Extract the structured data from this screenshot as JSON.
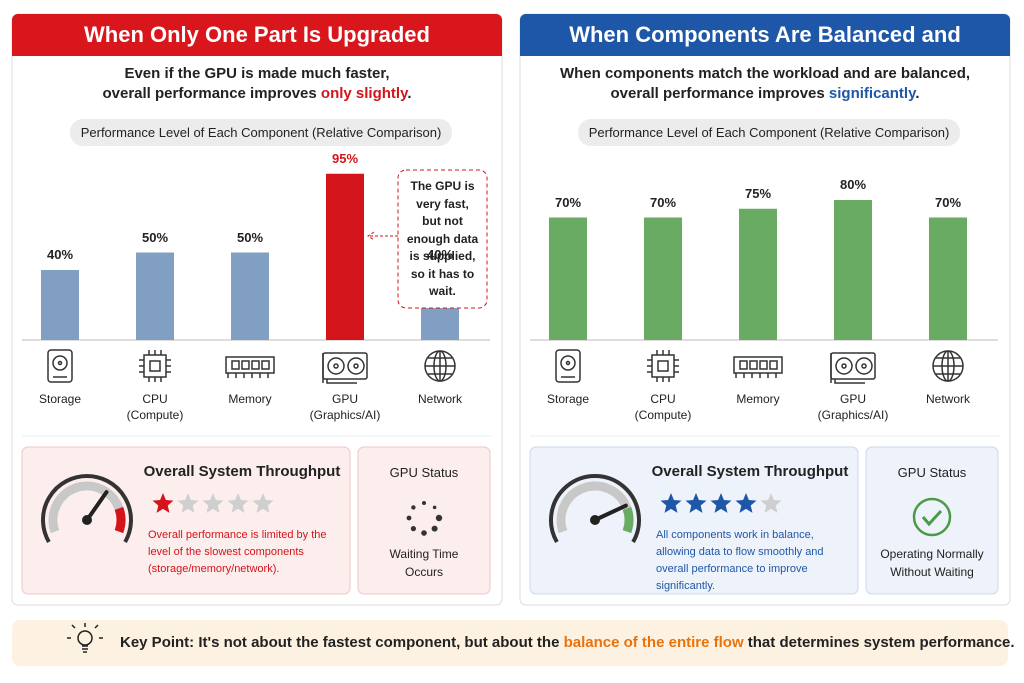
{
  "chart_data": [
    {
      "type": "bar",
      "title": "When Only One Part Is Upgraded",
      "subtitle": {
        "line1": "Even if the GPU is made much faster,",
        "line2": "overall performance improves ",
        "highlight": "only slightly",
        "end": "."
      },
      "chart_label": "Performance Level of Each Component (Relative Comparison)",
      "categories": [
        "Storage",
        "CPU\n(Compute)",
        "Memory",
        "GPU\n(Graphics/AI)",
        "Network"
      ],
      "values": [
        40,
        50,
        50,
        95,
        40
      ],
      "value_labels": [
        "40%",
        "50%",
        "50%",
        "95%",
        "40%"
      ],
      "colors": [
        "#819fc2",
        "#819fc2",
        "#819fc2",
        "#d3141a",
        "#819fc2"
      ],
      "value_label_colors": [
        "#222222",
        "#222222",
        "#222222",
        "#d3141a",
        "#222222"
      ],
      "header_color": "#d9161c",
      "accent_color": "#d3141a",
      "annotation": "The GPU is\nvery fast,\nbut not\nenough data\nis supplied,\nso it has to\nwait.",
      "summary": {
        "title": "Overall System Throughput",
        "rating": 1,
        "max_rating": 5,
        "text": "Overall performance is limited by the\nlevel of the slowest components\n(storage/memory/network)."
      },
      "status": {
        "title": "GPU Status",
        "text": "Waiting Time\nOccurs"
      }
    },
    {
      "type": "bar",
      "title": "When Components Are Balanced and Optimized",
      "subtitle": {
        "line1": "When components match the workload and are balanced,",
        "line2": "overall performance improves ",
        "highlight": "significantly",
        "end": "."
      },
      "chart_label": "Performance Level of Each Component (Relative Comparison)",
      "categories": [
        "Storage",
        "CPU\n(Compute)",
        "Memory",
        "GPU\n(Graphics/AI)",
        "Network"
      ],
      "values": [
        70,
        70,
        75,
        80,
        70
      ],
      "value_labels": [
        "70%",
        "70%",
        "75%",
        "80%",
        "70%"
      ],
      "colors": [
        "#6aab63",
        "#6aab63",
        "#6aab63",
        "#6aab63",
        "#6aab63"
      ],
      "value_label_colors": [
        "#222222",
        "#222222",
        "#222222",
        "#222222",
        "#222222"
      ],
      "header_color": "#1f57a8",
      "accent_color": "#1f57a8",
      "summary": {
        "title": "Overall System Throughput",
        "rating": 4,
        "max_rating": 5,
        "text": "All components work in balance,\nallowing data to flow smoothly and\noverall performance to improve significantly."
      },
      "status": {
        "title": "GPU Status",
        "text": "Operating Normally\nWithout Waiting"
      }
    }
  ],
  "key_point": {
    "label": "Key Point:",
    "text": " It's not about the fastest component, but about the ",
    "highlight": "balance of the entire flow",
    "end": " that determines system performance."
  }
}
